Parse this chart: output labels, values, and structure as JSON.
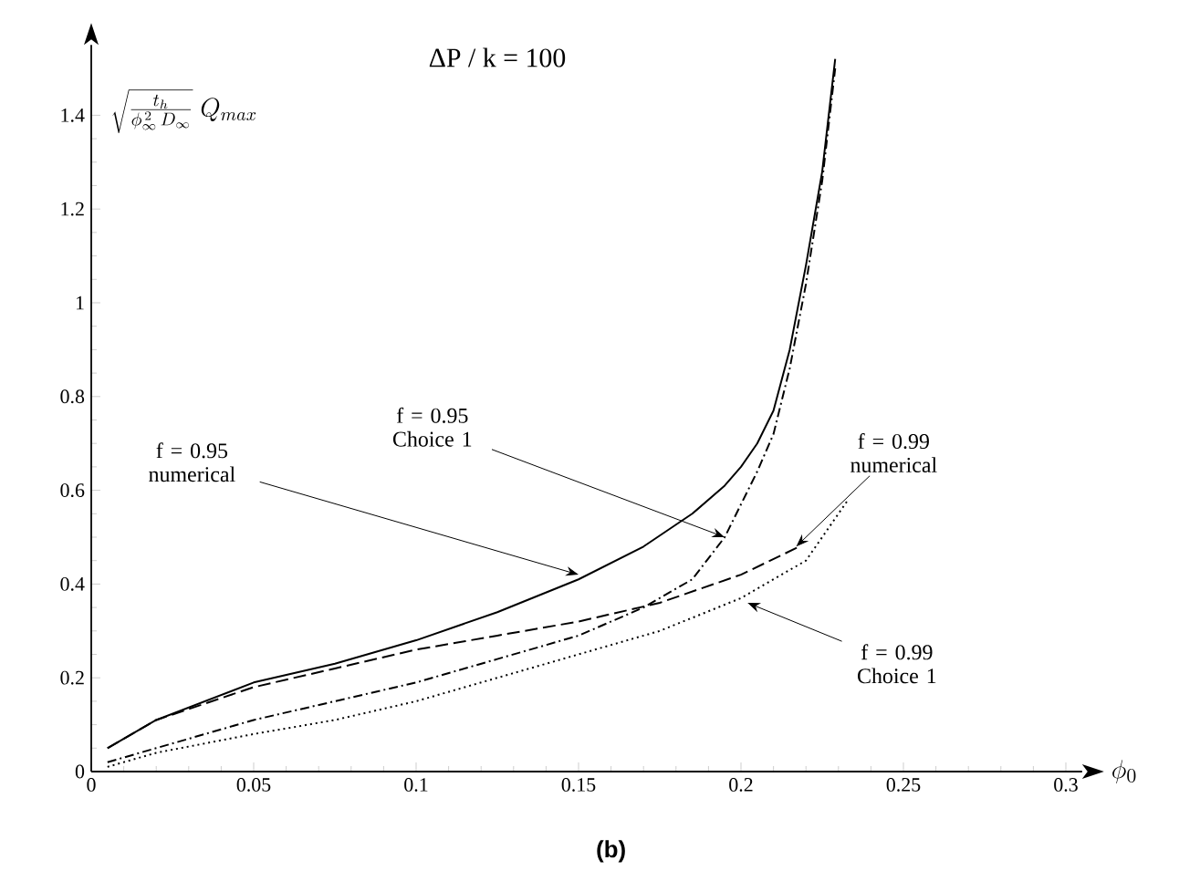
{
  "chart_data": {
    "type": "line",
    "title": "ΔP / k = 100",
    "xlabel": "\\phi_0",
    "ylabel": "\\sqrt{\\frac{t_h}{\\phi_\\infty^{\\,2}\\,D_\\infty}}\\;Q_{max}",
    "xlim": [
      0,
      0.305
    ],
    "ylim": [
      0,
      1.55
    ],
    "xticks": [
      0,
      0.05,
      0.1,
      0.15,
      0.2,
      0.25,
      0.3
    ],
    "yticks": [
      0,
      0.2,
      0.4,
      0.6,
      0.8,
      1,
      1.2,
      1.4
    ],
    "grid": false,
    "marker": "none",
    "series": [
      {
        "color": "#000000",
        "line_style": "solid",
        "x": [
          0.005,
          0.02,
          0.05,
          0.075,
          0.1,
          0.125,
          0.15,
          0.17,
          0.185,
          0.195,
          0.2,
          0.205,
          0.21,
          0.215,
          0.22,
          0.225,
          0.229
        ],
        "values": [
          0.05,
          0.11,
          0.19,
          0.23,
          0.28,
          0.34,
          0.41,
          0.48,
          0.55,
          0.61,
          0.65,
          0.7,
          0.77,
          0.9,
          1.08,
          1.28,
          1.52
        ]
      },
      {
        "color": "#000000",
        "line_style": "dashdot",
        "x": [
          0.005,
          0.02,
          0.05,
          0.075,
          0.1,
          0.125,
          0.15,
          0.17,
          0.185,
          0.195,
          0.2,
          0.205,
          0.21,
          0.215,
          0.22,
          0.225,
          0.229
        ],
        "values": [
          0.02,
          0.05,
          0.11,
          0.15,
          0.19,
          0.24,
          0.29,
          0.35,
          0.41,
          0.5,
          0.57,
          0.64,
          0.72,
          0.86,
          1.04,
          1.26,
          1.5
        ]
      },
      {
        "color": "#000000",
        "line_style": "dashed",
        "x": [
          0.005,
          0.02,
          0.05,
          0.075,
          0.1,
          0.125,
          0.15,
          0.175,
          0.2,
          0.218
        ],
        "values": [
          0.05,
          0.11,
          0.18,
          0.22,
          0.26,
          0.29,
          0.32,
          0.36,
          0.42,
          0.48
        ]
      },
      {
        "color": "#000000",
        "line_style": "dotted",
        "x": [
          0.005,
          0.02,
          0.05,
          0.075,
          0.1,
          0.125,
          0.15,
          0.175,
          0.2,
          0.22,
          0.233
        ],
        "values": [
          0.01,
          0.04,
          0.08,
          0.11,
          0.15,
          0.2,
          0.25,
          0.3,
          0.37,
          0.45,
          0.58
        ]
      }
    ],
    "annotations": [
      {
        "text": "f = 0.95 numerical",
        "x": 0.15,
        "y": 0.42
      },
      {
        "text": "f = 0.95 Choice 1",
        "x": 0.195,
        "y": 0.5
      },
      {
        "text": "f = 0.99 numerical",
        "x": 0.217,
        "y": 0.48
      },
      {
        "text": "f = 0.99 Choice 1",
        "x": 0.202,
        "y": 0.36
      },
      "(b)"
    ]
  }
}
